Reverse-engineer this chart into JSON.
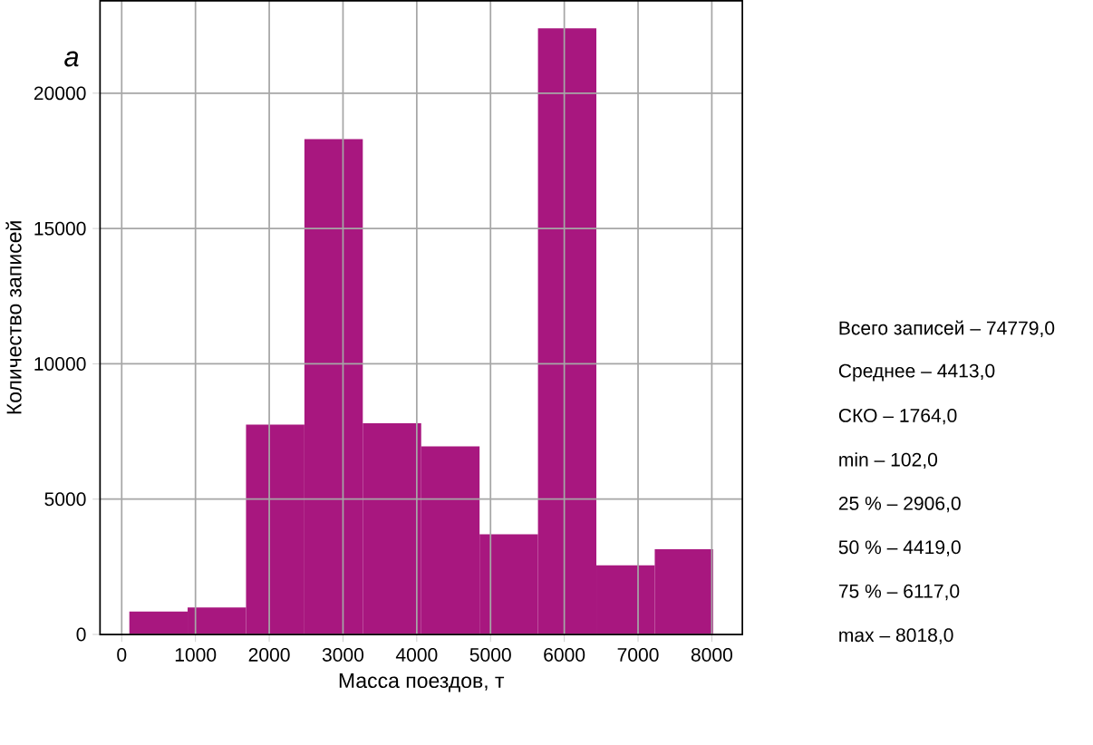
{
  "chart_data": {
    "type": "histogram",
    "xlabel": "Масса поездов, т",
    "ylabel": "Количество записей",
    "bins": [
      102,
      893.6,
      1685.2,
      2476.8,
      3268.4,
      4060,
      4851.6,
      5643.2,
      6434.8,
      7226.4,
      8018
    ],
    "values": [
      850,
      1000,
      7750,
      18300,
      7800,
      6950,
      3700,
      22400,
      2550,
      3150
    ],
    "color": "#a8177f",
    "xlim": [
      -294,
      8414
    ],
    "ylim": [
      0,
      23415
    ],
    "xticks": [
      0,
      1000,
      2000,
      3000,
      4000,
      5000,
      6000,
      7000,
      8000
    ],
    "yticks": [
      0,
      5000,
      10000,
      15000,
      20000
    ],
    "grid": true,
    "annotations": [
      "а",
      "Всего записей – 74779,0",
      "Среднее – 4413,0",
      "СКО – 1764,0",
      "min – 102,0",
      "25 % – 2906,0",
      "50 % – 4419,0",
      "75 % – 6117,0",
      "max – 8018,0"
    ]
  }
}
